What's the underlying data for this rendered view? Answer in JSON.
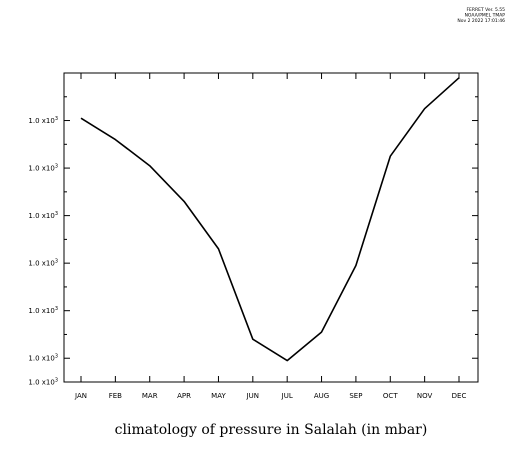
{
  "header": {
    "line1": "FERRET Ver. 5.55",
    "line2": "NOAA/PMEL TMAP",
    "line3": "Nov  2 2022 17:01:46"
  },
  "chart_data": {
    "type": "line",
    "title": "climatology of pressure in Salalah (in mbar)",
    "xlabel": "",
    "ylabel": "",
    "categories": [
      "JAN",
      "FEB",
      "MAR",
      "APR",
      "MAY",
      "JUN",
      "JUL",
      "AUG",
      "SEP",
      "OCT",
      "NOV",
      "DEC"
    ],
    "values": [
      1014.1,
      1013.2,
      1012.1,
      1010.6,
      1008.6,
      1004.8,
      1003.9,
      1005.1,
      1007.9,
      1012.5,
      1014.5,
      1015.8
    ],
    "ylim": [
      1003.0,
      1016.0
    ],
    "y_ticks": [
      1004,
      1006,
      1008,
      1010,
      1012,
      1014,
      1016
    ],
    "y_tick_mantissa": "1.0 x10",
    "y_tick_exponent": "3",
    "grid": false,
    "line_color": "#000000"
  }
}
